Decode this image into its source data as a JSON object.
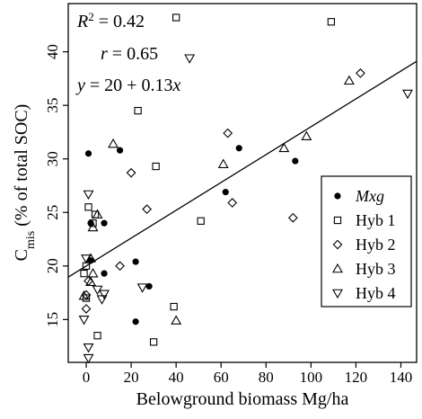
{
  "chart_data": {
    "type": "scatter",
    "xlabel": "Belowground biomass Mg/ha",
    "ylabel_main": "C",
    "ylabel_sub": "mis",
    "ylabel_rest": " (% of total SOC)",
    "xlim": [
      -8,
      147
    ],
    "ylim": [
      11,
      44.5
    ],
    "xticks": [
      0,
      20,
      40,
      60,
      80,
      100,
      120,
      140
    ],
    "yticks": [
      15,
      20,
      25,
      30,
      35,
      40
    ],
    "grid": false,
    "legend_position": "right",
    "annotations": {
      "r2_label": "R",
      "r2_value": " = 0.42",
      "r_label": "r",
      "r_value": " = 0.65",
      "eq_y": "y",
      "eq_mid": " = 20 + 0.13",
      "eq_x": "x"
    },
    "regression_line": {
      "intercept": 20,
      "slope": 0.13
    },
    "series": [
      {
        "name": "Mxg",
        "marker": "filled-circle",
        "points": [
          [
            1,
            30.5
          ],
          [
            15,
            30.8
          ],
          [
            2,
            20.5
          ],
          [
            2,
            24
          ],
          [
            8,
            24
          ],
          [
            8,
            19.3
          ],
          [
            22,
            20.4
          ],
          [
            28,
            18.1
          ],
          [
            22,
            14.8
          ],
          [
            62,
            26.9
          ],
          [
            68,
            31
          ],
          [
            93,
            29.8
          ]
        ]
      },
      {
        "name": "Hyb 1",
        "marker": "open-square",
        "points": [
          [
            40,
            43.2
          ],
          [
            109,
            42.8
          ],
          [
            23,
            34.5
          ],
          [
            31,
            29.3
          ],
          [
            1,
            25.5
          ],
          [
            4,
            24.8
          ],
          [
            3,
            24
          ],
          [
            51,
            24.2
          ],
          [
            0,
            20
          ],
          [
            -1,
            19.3
          ],
          [
            0,
            17
          ],
          [
            5,
            13.5
          ],
          [
            30,
            12.9
          ],
          [
            39,
            16.2
          ]
        ]
      },
      {
        "name": "Hyb 2",
        "marker": "open-diamond",
        "points": [
          [
            20,
            28.7
          ],
          [
            27,
            25.3
          ],
          [
            63,
            32.4
          ],
          [
            65,
            25.9
          ],
          [
            92,
            24.5
          ],
          [
            122,
            38
          ],
          [
            15,
            20
          ],
          [
            1,
            18.6
          ],
          [
            0,
            17.3
          ],
          [
            0,
            16
          ]
        ]
      },
      {
        "name": "Hyb 3",
        "marker": "open-triangle-up",
        "points": [
          [
            117,
            37.3
          ],
          [
            98,
            32.1
          ],
          [
            88,
            31
          ],
          [
            61,
            29.5
          ],
          [
            12,
            31.4
          ],
          [
            5,
            24.8
          ],
          [
            3,
            23.6
          ],
          [
            2,
            20.7
          ],
          [
            3,
            19.3
          ],
          [
            2,
            18.5
          ],
          [
            40,
            14.9
          ],
          [
            -1,
            17.2
          ]
        ]
      },
      {
        "name": "Hyb 4",
        "marker": "open-triangle-down",
        "points": [
          [
            46,
            39.4
          ],
          [
            143,
            36.1
          ],
          [
            1,
            26.7
          ],
          [
            0,
            20.7
          ],
          [
            5,
            17.8
          ],
          [
            8,
            17.4
          ],
          [
            7,
            16.9
          ],
          [
            25,
            18
          ],
          [
            -1,
            15
          ],
          [
            1,
            12.4
          ],
          [
            1,
            11.4
          ]
        ]
      }
    ]
  }
}
